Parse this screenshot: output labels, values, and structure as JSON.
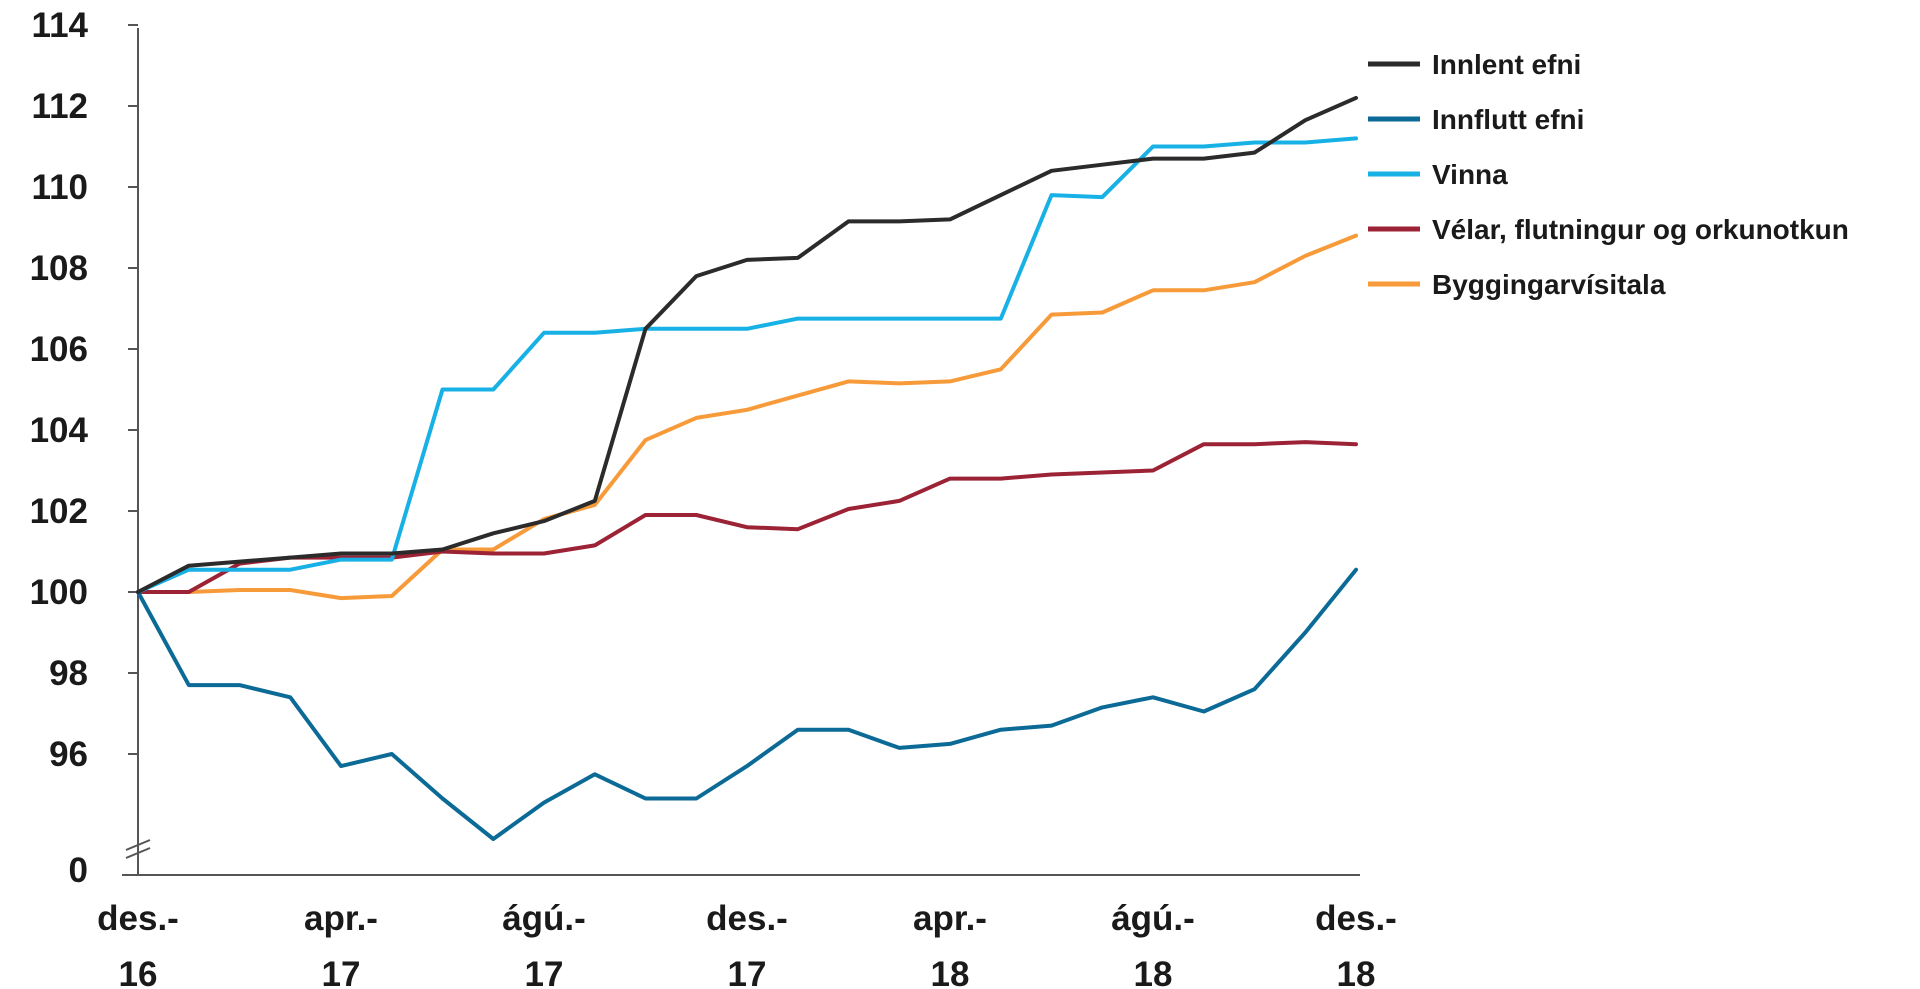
{
  "chart_data": {
    "type": "line",
    "title": "",
    "xlabel": "",
    "ylabel": "",
    "ylim": [
      94,
      114
    ],
    "y_ticks": [
      0,
      96,
      98,
      100,
      102,
      104,
      106,
      108,
      110,
      112,
      114
    ],
    "y_axis_break": true,
    "x_tick_labels": [
      {
        "month_index": 0,
        "lines": [
          "des.-",
          "16"
        ]
      },
      {
        "month_index": 4,
        "lines": [
          "apr.-",
          "17"
        ]
      },
      {
        "month_index": 8,
        "lines": [
          "ágú.-",
          "17"
        ]
      },
      {
        "month_index": 12,
        "lines": [
          "des.-",
          "17"
        ]
      },
      {
        "month_index": 16,
        "lines": [
          "apr.-",
          "18"
        ]
      },
      {
        "month_index": 20,
        "lines": [
          "ágú.-",
          "18"
        ]
      },
      {
        "month_index": 24,
        "lines": [
          "des.-",
          "18"
        ]
      }
    ],
    "grid": false,
    "legend_position": "top-right",
    "series": [
      {
        "name": "Innlent efni",
        "color": "#2b2b2b",
        "values": [
          100,
          100.65,
          100.75,
          100.85,
          100.95,
          100.95,
          101.05,
          101.45,
          101.75,
          102.25,
          106.5,
          107.8,
          108.2,
          108.25,
          109.15,
          109.15,
          109.2,
          109.8,
          110.4,
          110.55,
          110.7,
          110.7,
          110.85,
          111.65,
          112.2
        ]
      },
      {
        "name": "Innflutt efni",
        "color": "#0b6a96",
        "values": [
          100,
          97.7,
          97.7,
          97.4,
          95.7,
          96.0,
          94.9,
          93.9,
          94.8,
          95.5,
          94.9,
          94.9,
          95.7,
          96.6,
          96.6,
          96.15,
          96.25,
          96.6,
          96.7,
          97.15,
          97.4,
          97.05,
          97.6,
          99.0,
          100.55
        ]
      },
      {
        "name": "Vinna",
        "color": "#17b1e6",
        "values": [
          100,
          100.55,
          100.55,
          100.55,
          100.8,
          100.8,
          105.0,
          105.0,
          106.4,
          106.4,
          106.5,
          106.5,
          106.5,
          106.75,
          106.75,
          106.75,
          106.75,
          106.75,
          109.8,
          109.75,
          111.0,
          111.0,
          111.1,
          111.1,
          111.2
        ]
      },
      {
        "name": "Vélar, flutningur og orkunotkun",
        "color": "#9b2335",
        "values": [
          100,
          100.0,
          100.7,
          100.85,
          100.85,
          100.85,
          101.0,
          100.95,
          100.95,
          101.15,
          101.9,
          101.9,
          101.6,
          101.55,
          102.05,
          102.25,
          102.8,
          102.8,
          102.9,
          102.95,
          103.0,
          103.65,
          103.65,
          103.7,
          103.65
        ]
      },
      {
        "name": "Byggingarvísitala",
        "color": "#f79b3a",
        "values": [
          100,
          100.0,
          100.05,
          100.05,
          99.85,
          99.9,
          101.05,
          101.05,
          101.8,
          102.15,
          103.75,
          104.3,
          104.5,
          104.85,
          105.2,
          105.15,
          105.2,
          105.5,
          106.85,
          106.9,
          107.45,
          107.45,
          107.65,
          108.3,
          108.8
        ]
      }
    ]
  }
}
